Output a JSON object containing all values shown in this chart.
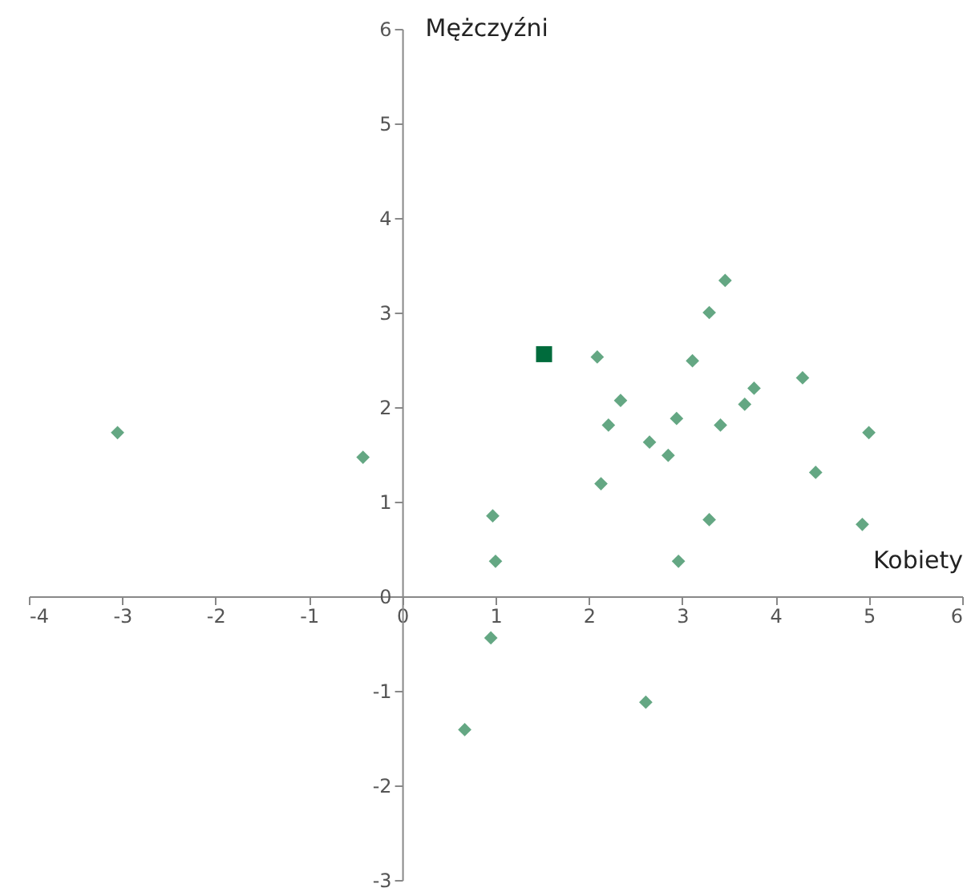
{
  "chart_data": {
    "type": "scatter",
    "xlabel": "Kobiety",
    "ylabel": "Mężczyźni",
    "xlim": [
      -4,
      6
    ],
    "ylim": [
      -3,
      6
    ],
    "xticks": [
      -4,
      -3,
      -2,
      -1,
      0,
      1,
      2,
      3,
      4,
      5,
      6
    ],
    "yticks": [
      -3,
      -2,
      -1,
      0,
      1,
      2,
      3,
      4,
      5,
      6
    ],
    "grid": false,
    "series": [
      {
        "color": "#64a783",
        "marker": "diamond",
        "x": [
          -3.05,
          -0.42,
          0.97,
          1.0,
          0.95,
          0.67,
          2.61,
          2.09,
          2.34,
          2.21,
          2.13,
          2.65,
          2.85,
          2.94,
          3.11,
          3.29,
          3.46,
          3.41,
          3.67,
          3.77,
          4.29,
          3.29,
          2.96,
          4.43,
          5.0,
          4.93
        ],
        "values": [
          1.73,
          1.47,
          0.85,
          0.37,
          -0.44,
          -1.41,
          -1.12,
          2.53,
          2.07,
          1.81,
          1.19,
          1.63,
          1.49,
          1.88,
          2.49,
          3.0,
          3.34,
          1.81,
          2.03,
          2.2,
          2.31,
          0.81,
          0.37,
          1.31,
          1.73,
          0.76
        ]
      },
      {
        "color": "#006b3c",
        "marker": "square",
        "x": [
          1.52
        ],
        "values": [
          2.56
        ]
      }
    ]
  }
}
